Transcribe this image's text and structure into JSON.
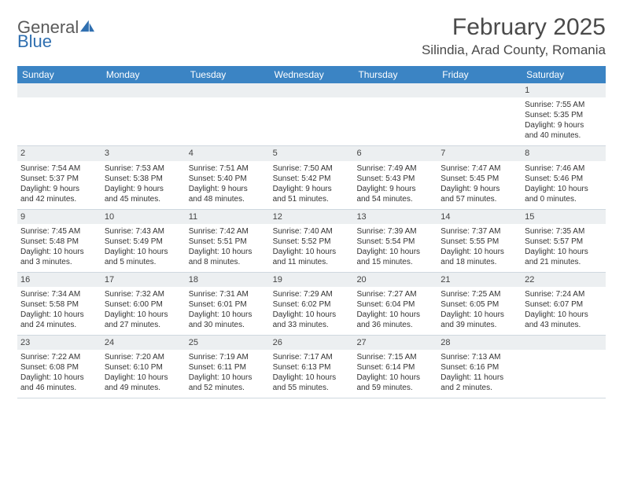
{
  "brand": {
    "name_gray": "General",
    "name_blue": "Blue"
  },
  "title": "February 2025",
  "location": "Silindia, Arad County, Romania",
  "accent_color": "#3b84c4",
  "header_bg": "#eceff1",
  "day_headers": [
    "Sunday",
    "Monday",
    "Tuesday",
    "Wednesday",
    "Thursday",
    "Friday",
    "Saturday"
  ],
  "weeks": [
    [
      null,
      null,
      null,
      null,
      null,
      null,
      {
        "n": "1",
        "sunrise": "Sunrise: 7:55 AM",
        "sunset": "Sunset: 5:35 PM",
        "day1": "Daylight: 9 hours",
        "day2": "and 40 minutes."
      }
    ],
    [
      {
        "n": "2",
        "sunrise": "Sunrise: 7:54 AM",
        "sunset": "Sunset: 5:37 PM",
        "day1": "Daylight: 9 hours",
        "day2": "and 42 minutes."
      },
      {
        "n": "3",
        "sunrise": "Sunrise: 7:53 AM",
        "sunset": "Sunset: 5:38 PM",
        "day1": "Daylight: 9 hours",
        "day2": "and 45 minutes."
      },
      {
        "n": "4",
        "sunrise": "Sunrise: 7:51 AM",
        "sunset": "Sunset: 5:40 PM",
        "day1": "Daylight: 9 hours",
        "day2": "and 48 minutes."
      },
      {
        "n": "5",
        "sunrise": "Sunrise: 7:50 AM",
        "sunset": "Sunset: 5:42 PM",
        "day1": "Daylight: 9 hours",
        "day2": "and 51 minutes."
      },
      {
        "n": "6",
        "sunrise": "Sunrise: 7:49 AM",
        "sunset": "Sunset: 5:43 PM",
        "day1": "Daylight: 9 hours",
        "day2": "and 54 minutes."
      },
      {
        "n": "7",
        "sunrise": "Sunrise: 7:47 AM",
        "sunset": "Sunset: 5:45 PM",
        "day1": "Daylight: 9 hours",
        "day2": "and 57 minutes."
      },
      {
        "n": "8",
        "sunrise": "Sunrise: 7:46 AM",
        "sunset": "Sunset: 5:46 PM",
        "day1": "Daylight: 10 hours",
        "day2": "and 0 minutes."
      }
    ],
    [
      {
        "n": "9",
        "sunrise": "Sunrise: 7:45 AM",
        "sunset": "Sunset: 5:48 PM",
        "day1": "Daylight: 10 hours",
        "day2": "and 3 minutes."
      },
      {
        "n": "10",
        "sunrise": "Sunrise: 7:43 AM",
        "sunset": "Sunset: 5:49 PM",
        "day1": "Daylight: 10 hours",
        "day2": "and 5 minutes."
      },
      {
        "n": "11",
        "sunrise": "Sunrise: 7:42 AM",
        "sunset": "Sunset: 5:51 PM",
        "day1": "Daylight: 10 hours",
        "day2": "and 8 minutes."
      },
      {
        "n": "12",
        "sunrise": "Sunrise: 7:40 AM",
        "sunset": "Sunset: 5:52 PM",
        "day1": "Daylight: 10 hours",
        "day2": "and 11 minutes."
      },
      {
        "n": "13",
        "sunrise": "Sunrise: 7:39 AM",
        "sunset": "Sunset: 5:54 PM",
        "day1": "Daylight: 10 hours",
        "day2": "and 15 minutes."
      },
      {
        "n": "14",
        "sunrise": "Sunrise: 7:37 AM",
        "sunset": "Sunset: 5:55 PM",
        "day1": "Daylight: 10 hours",
        "day2": "and 18 minutes."
      },
      {
        "n": "15",
        "sunrise": "Sunrise: 7:35 AM",
        "sunset": "Sunset: 5:57 PM",
        "day1": "Daylight: 10 hours",
        "day2": "and 21 minutes."
      }
    ],
    [
      {
        "n": "16",
        "sunrise": "Sunrise: 7:34 AM",
        "sunset": "Sunset: 5:58 PM",
        "day1": "Daylight: 10 hours",
        "day2": "and 24 minutes."
      },
      {
        "n": "17",
        "sunrise": "Sunrise: 7:32 AM",
        "sunset": "Sunset: 6:00 PM",
        "day1": "Daylight: 10 hours",
        "day2": "and 27 minutes."
      },
      {
        "n": "18",
        "sunrise": "Sunrise: 7:31 AM",
        "sunset": "Sunset: 6:01 PM",
        "day1": "Daylight: 10 hours",
        "day2": "and 30 minutes."
      },
      {
        "n": "19",
        "sunrise": "Sunrise: 7:29 AM",
        "sunset": "Sunset: 6:02 PM",
        "day1": "Daylight: 10 hours",
        "day2": "and 33 minutes."
      },
      {
        "n": "20",
        "sunrise": "Sunrise: 7:27 AM",
        "sunset": "Sunset: 6:04 PM",
        "day1": "Daylight: 10 hours",
        "day2": "and 36 minutes."
      },
      {
        "n": "21",
        "sunrise": "Sunrise: 7:25 AM",
        "sunset": "Sunset: 6:05 PM",
        "day1": "Daylight: 10 hours",
        "day2": "and 39 minutes."
      },
      {
        "n": "22",
        "sunrise": "Sunrise: 7:24 AM",
        "sunset": "Sunset: 6:07 PM",
        "day1": "Daylight: 10 hours",
        "day2": "and 43 minutes."
      }
    ],
    [
      {
        "n": "23",
        "sunrise": "Sunrise: 7:22 AM",
        "sunset": "Sunset: 6:08 PM",
        "day1": "Daylight: 10 hours",
        "day2": "and 46 minutes."
      },
      {
        "n": "24",
        "sunrise": "Sunrise: 7:20 AM",
        "sunset": "Sunset: 6:10 PM",
        "day1": "Daylight: 10 hours",
        "day2": "and 49 minutes."
      },
      {
        "n": "25",
        "sunrise": "Sunrise: 7:19 AM",
        "sunset": "Sunset: 6:11 PM",
        "day1": "Daylight: 10 hours",
        "day2": "and 52 minutes."
      },
      {
        "n": "26",
        "sunrise": "Sunrise: 7:17 AM",
        "sunset": "Sunset: 6:13 PM",
        "day1": "Daylight: 10 hours",
        "day2": "and 55 minutes."
      },
      {
        "n": "27",
        "sunrise": "Sunrise: 7:15 AM",
        "sunset": "Sunset: 6:14 PM",
        "day1": "Daylight: 10 hours",
        "day2": "and 59 minutes."
      },
      {
        "n": "28",
        "sunrise": "Sunrise: 7:13 AM",
        "sunset": "Sunset: 6:16 PM",
        "day1": "Daylight: 11 hours",
        "day2": "and 2 minutes."
      },
      null
    ]
  ]
}
